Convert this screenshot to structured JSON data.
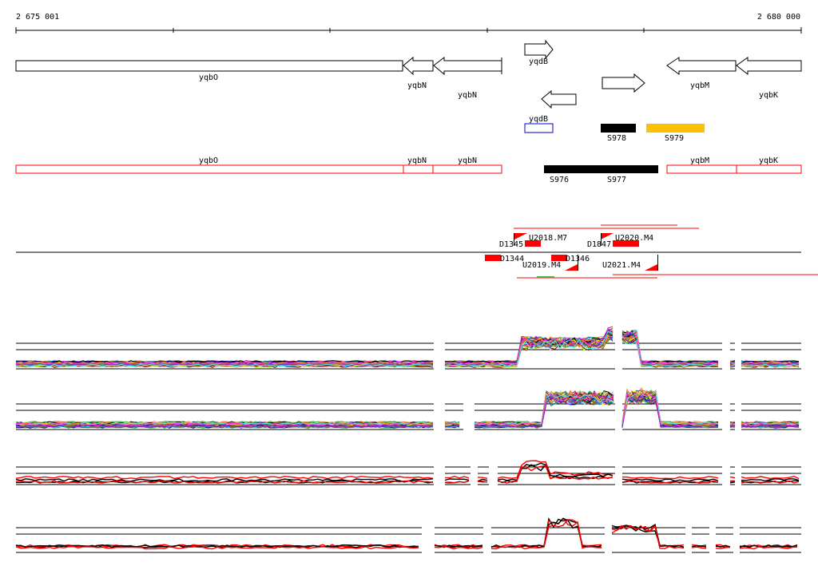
{
  "ruler": {
    "start_label": "2 675 001",
    "end_label": "2 680 000"
  },
  "genes": [
    {
      "name": "yqbO",
      "strand": "+"
    },
    {
      "name": "yqbN",
      "strand": "-"
    },
    {
      "name": "yqbN",
      "strand": "-"
    },
    {
      "name": "yqdB",
      "strand": "+"
    },
    {
      "name": "yqdB",
      "strand": "-"
    },
    {
      "name": "",
      "strand": "+"
    },
    {
      "name": "yqbM",
      "strand": "-"
    },
    {
      "name": "yqbK",
      "strand": "-"
    }
  ],
  "features": {
    "blue_box_label": "yqdB",
    "black_bar_1": "S978",
    "yellow_bar": "S979",
    "black_bar_2_left": "S976",
    "black_bar_2_right": "S977",
    "colors": {
      "black": "#000000",
      "yellow": "#ffc000",
      "red": "#ff0000",
      "blue": "#0000cc"
    }
  },
  "red_track": [
    "yqbO",
    "yqbN",
    "yqbN",
    "yqbM",
    "yqbK"
  ],
  "probes": {
    "top": [
      "D1345",
      "U2018.M7",
      "D1847",
      "U2020.M4"
    ],
    "bottom": [
      "D1344",
      "U2019.M4",
      "D1346",
      "U2021.M4"
    ]
  },
  "expression_tracks": 4
}
